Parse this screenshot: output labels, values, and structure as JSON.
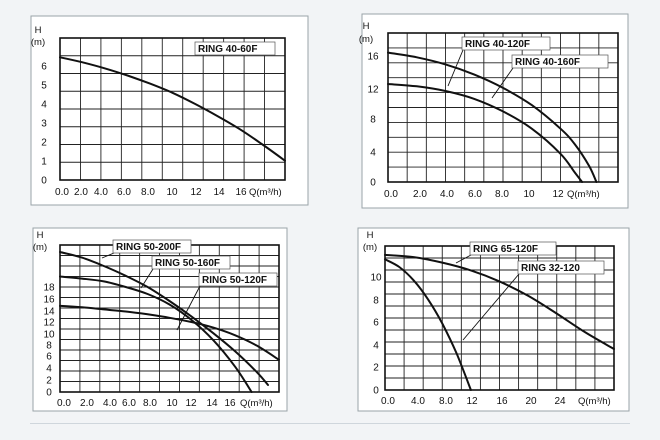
{
  "chart_data": [
    {
      "type": "line",
      "legend": "top-right",
      "grid": true,
      "yunit": "(m)",
      "ylabel": "H",
      "xlabel": "Q(m³/h)",
      "xlim": [
        0,
        20
      ],
      "ylim": [
        0,
        7
      ],
      "xticks": [
        "0.0",
        "2.0",
        "4.0",
        "6.0",
        "8.0",
        "10",
        "12",
        "14",
        "16"
      ],
      "yticks": [
        "0",
        "1",
        "2",
        "3",
        "4",
        "5",
        "6"
      ],
      "series": [
        {
          "name": "RING 40-60F",
          "x": [
            0,
            2,
            4,
            6,
            8,
            10,
            12,
            14,
            16,
            18,
            20
          ],
          "y": [
            6.05,
            5.8,
            5.5,
            5.15,
            4.75,
            4.3,
            3.75,
            3.15,
            2.5,
            1.75,
            0.95
          ]
        }
      ]
    },
    {
      "type": "line",
      "legend": "top-right",
      "grid": true,
      "yunit": "(m)",
      "ylabel": "H",
      "xlabel": "Q(m³/h)",
      "xlim": [
        0,
        16
      ],
      "ylim": [
        0,
        19
      ],
      "xticks": [
        "0.0",
        "2.0",
        "4.0",
        "6.0",
        "8.0",
        "10",
        "12"
      ],
      "yticks": [
        "0",
        "4",
        "8",
        "12",
        "16"
      ],
      "series": [
        {
          "name": "RING 40-120F",
          "x": [
            0,
            2,
            4,
            6,
            8,
            10,
            12,
            13,
            13.5
          ],
          "y": [
            12.5,
            12.2,
            11.6,
            10.6,
            9.0,
            6.8,
            3.6,
            1.2,
            0
          ]
        },
        {
          "name": "RING 40-160F",
          "x": [
            0,
            2,
            4,
            6,
            8,
            10,
            12,
            13,
            14,
            14.5
          ],
          "y": [
            16.5,
            15.9,
            15.0,
            13.7,
            12.0,
            9.8,
            6.8,
            4.8,
            2.0,
            0
          ]
        }
      ]
    },
    {
      "type": "line",
      "legend": "top-right",
      "grid": true,
      "yunit": "(m)",
      "ylabel": "H",
      "xlabel": "Q(m³/h)",
      "xlim": [
        0,
        20
      ],
      "ylim": [
        0,
        21
      ],
      "xticks": [
        "0.0",
        "2.0",
        "4.0",
        "6.0",
        "8.0",
        "10",
        "12",
        "14",
        "16"
      ],
      "yticks": [
        "0",
        "2",
        "4",
        "6",
        "8",
        "10",
        "12",
        "14",
        "16",
        "18"
      ],
      "series": [
        {
          "name": "RING 50-200F",
          "x": [
            0,
            2,
            4,
            6,
            8,
            10,
            12,
            14,
            16,
            18,
            19
          ],
          "y": [
            20.0,
            19.2,
            18.0,
            16.6,
            15.0,
            13.0,
            10.8,
            8.4,
            5.8,
            2.8,
            1.0
          ]
        },
        {
          "name": "RING 50-160F",
          "x": [
            0,
            2,
            4,
            6,
            8,
            10,
            12,
            14,
            16,
            17.5
          ],
          "y": [
            16.5,
            16.2,
            15.8,
            15.0,
            14.0,
            12.5,
            10.3,
            7.4,
            3.6,
            0
          ]
        },
        {
          "name": "RING 50-120F",
          "x": [
            0,
            2,
            4,
            6,
            8,
            10,
            12,
            14,
            16,
            18,
            20
          ],
          "y": [
            12.3,
            12.1,
            11.8,
            11.5,
            11.1,
            10.6,
            10.0,
            9.2,
            8.1,
            6.6,
            4.6
          ]
        }
      ]
    },
    {
      "type": "line",
      "legend": "top-right",
      "grid": true,
      "yunit": "(m)",
      "ylabel": "H",
      "xlabel": "Q(m³/h)",
      "xlim": [
        0,
        32
      ],
      "ylim": [
        0,
        13
      ],
      "xticks": [
        "0.0",
        "4.0",
        "8.0",
        "12",
        "16",
        "20",
        "24"
      ],
      "yticks": [
        "0",
        "2",
        "4",
        "6",
        "8",
        "10"
      ],
      "series": [
        {
          "name": "RING 65-120F",
          "x": [
            0,
            4,
            8,
            12,
            16,
            20,
            24,
            28,
            32
          ],
          "y": [
            12.2,
            12.0,
            11.5,
            10.8,
            9.8,
            8.5,
            6.9,
            5.2,
            3.7
          ]
        },
        {
          "name": "RING 32-120",
          "x": [
            0,
            2,
            4,
            6,
            8,
            10,
            12
          ],
          "y": [
            11.8,
            11.1,
            9.9,
            8.2,
            6.0,
            3.3,
            0
          ]
        }
      ]
    }
  ]
}
